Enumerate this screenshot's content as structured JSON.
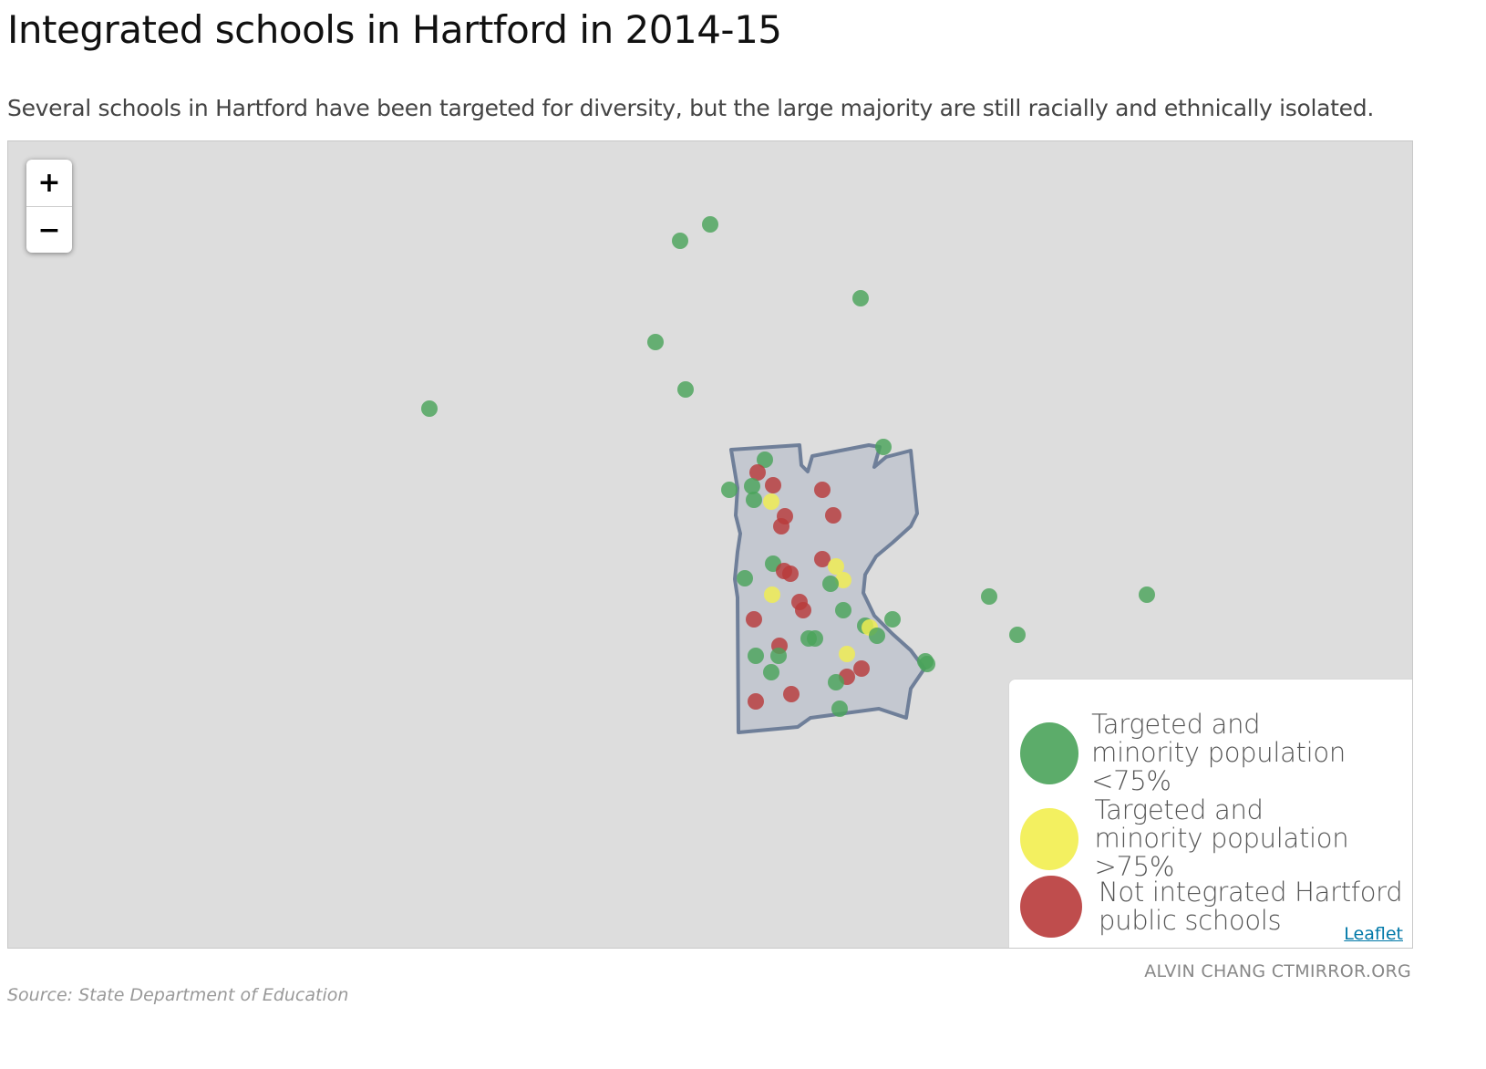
{
  "title": "Integrated schools in Hartford in 2014-15",
  "subtitle": "Several schools in Hartford have been targeted for diversity, but the large majority are still racially and ethnically isolated.",
  "zoom": {
    "in_label": "+",
    "out_label": "−"
  },
  "legend": [
    {
      "line1": "Targeted and",
      "line2": "minority population <75%",
      "color": "#4aa35a"
    },
    {
      "line1": "Targeted and",
      "line2": "minority population >75%",
      "color": "#f2ee4f"
    },
    {
      "line1": "Not integrated Hartford",
      "line2": "public schools",
      "color": "#b83a3a"
    }
  ],
  "attribution": "Leaflet",
  "credit": "ALVIN CHANG CTMIRROR.ORG",
  "source": "Source: State Department of Education",
  "colors": {
    "green": "#4aa35a",
    "yellow": "#f2ee4f",
    "red": "#b83a3a",
    "boundary": "#6f7f99",
    "boundary_fill": "#c4c8d0"
  }
}
